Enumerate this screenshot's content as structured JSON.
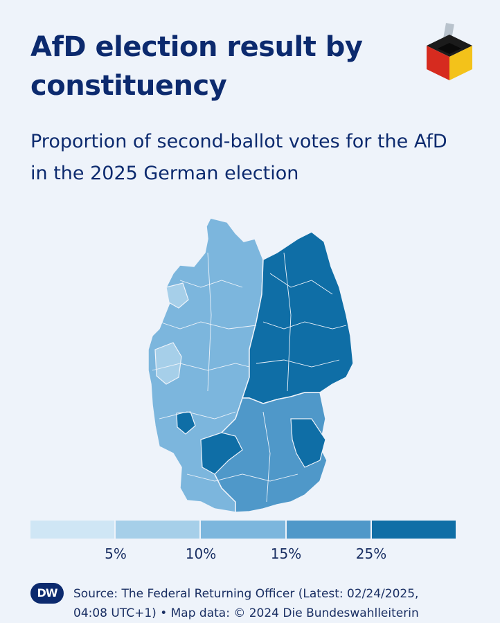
{
  "title": "AfD election result by constituency",
  "subtitle": "Proportion of second-ballot votes for the AfD in the 2025 German election",
  "legend": {
    "colors": [
      "#cfe6f5",
      "#a6cfe9",
      "#7cb6dd",
      "#4f98c9",
      "#0f6ea6"
    ],
    "ticks": [
      "5%",
      "10%",
      "15%",
      "25%"
    ],
    "tick_values": [
      5,
      10,
      15,
      25
    ]
  },
  "map": {
    "region_values": {
      "east": "25%",
      "west": "10%",
      "south": "15%"
    },
    "colors": {
      "east": "#0f6ea6",
      "west": "#7cb6dd",
      "south": "#4f98c9",
      "border": "#eef3fa"
    }
  },
  "footer": {
    "logo_text": "DW",
    "source_line1": "Source: The Federal Returning Officer (Latest: 02/24/2025,",
    "source_line2": "04:08 UTC+1) • Map data: © 2024 Die Bundeswahlleiterin"
  },
  "icons": {
    "ballot": "ballot-box-icon",
    "dw": "dw-logo-icon"
  }
}
